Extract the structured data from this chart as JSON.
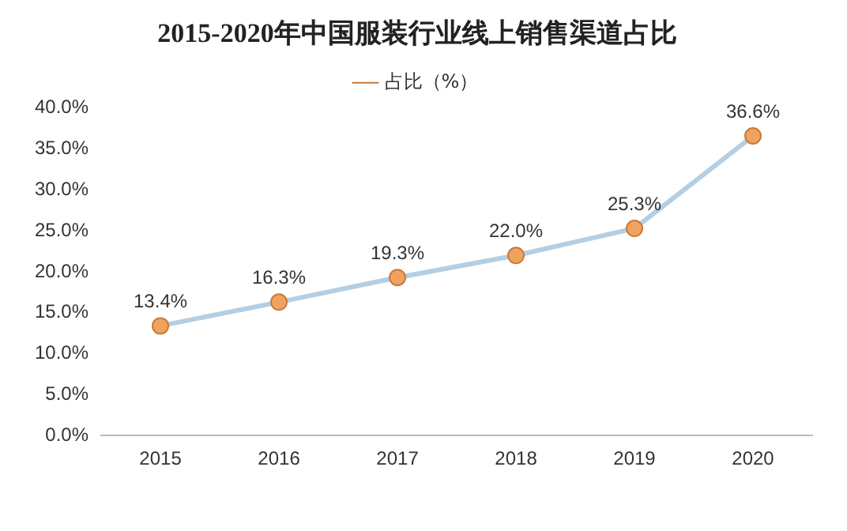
{
  "chart_data": {
    "type": "line",
    "title": "2015-2020年中国服装行业线上销售渠道占比",
    "categories": [
      "2015",
      "2016",
      "2017",
      "2018",
      "2019",
      "2020"
    ],
    "series": [
      {
        "name": "占比（%）",
        "color": "#b4cfe3",
        "values": [
          13.4,
          16.3,
          19.3,
          22.0,
          25.3,
          36.6
        ],
        "value_labels": [
          "13.4%",
          "16.3%",
          "19.3%",
          "22.0%",
          "25.3%",
          "36.6%"
        ]
      }
    ],
    "ylim": [
      0,
      40
    ],
    "yticks": [
      {
        "value": 0,
        "label": "0.0%"
      },
      {
        "value": 5,
        "label": "5.0%"
      },
      {
        "value": 10,
        "label": "10.0%"
      },
      {
        "value": 15,
        "label": "15.0%"
      },
      {
        "value": 20,
        "label": "20.0%"
      },
      {
        "value": 25,
        "label": "25.0%"
      },
      {
        "value": 30,
        "label": "30.0%"
      },
      {
        "value": 35,
        "label": "35.0%"
      },
      {
        "value": 40,
        "label": "40.0%"
      }
    ],
    "marker": "circle",
    "line_style": "solid",
    "legend": "top",
    "grid": false
  }
}
